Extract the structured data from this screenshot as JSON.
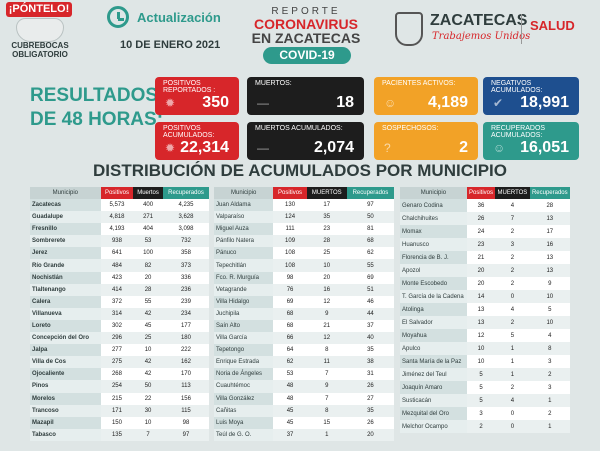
{
  "header": {
    "badge": "¡PÓNTELO!",
    "cubrebocas": "CUBREBOCAS OBLIGATORIO",
    "actualizacion": "Actualización",
    "fecha": "10 DE ENERO 2021",
    "reporte": "REPORTE",
    "coronavirus": "CORONAVIRUS",
    "en_zacatecas": "EN ZACATECAS",
    "covid": "COVID-19",
    "zacatecas": "ZACATECAS",
    "trabajemos": "Trabajemos Unidos",
    "salud": "SALUD"
  },
  "resultados": "RESULTADOS DE 48 HORAS:",
  "cards": [
    {
      "label": "POSITIVOS REPORTADOS :",
      "value": "350",
      "color": "#d7262a"
    },
    {
      "label": "MUERTOS:",
      "value": "18",
      "color": "#1d1d1d"
    },
    {
      "label": "PACIENTES ACTIVOS:",
      "value": "4,189",
      "color": "#f2a227"
    },
    {
      "label": "NEGATIVOS ACUMULADOS:",
      "value": "18,991",
      "color": "#1e4f8f"
    },
    {
      "label": "POSITIVOS ACUMULADOS:",
      "value": "22,314",
      "color": "#d7262a"
    },
    {
      "label": "MUERTOS ACUMULADOS:",
      "value": "2,074",
      "color": "#1d1d1d"
    },
    {
      "label": "SOSPECHOSOS:",
      "value": "2",
      "color": "#f2a227"
    },
    {
      "label": "RECUPERADOS ACUMULADOS:",
      "value": "16,051",
      "color": "#2e9a8c"
    }
  ],
  "distribucion_title": "DISTRIBUCIÓN DE ACUMULADOS POR MUNICIPIO",
  "tables": [
    {
      "headers": [
        "Municipio",
        "Positivos",
        "Muertos",
        "Recuperados"
      ],
      "rows": [
        [
          "Zacatecas",
          "5,573",
          "400",
          "4,235"
        ],
        [
          "Guadalupe",
          "4,818",
          "271",
          "3,628"
        ],
        [
          "Fresnillo",
          "4,193",
          "404",
          "3,098"
        ],
        [
          "Sombrerete",
          "938",
          "53",
          "732"
        ],
        [
          "Jerez",
          "641",
          "100",
          "358"
        ],
        [
          "Río Grande",
          "484",
          "82",
          "373"
        ],
        [
          "Nochistlán",
          "423",
          "20",
          "336"
        ],
        [
          "Tlaltenango",
          "414",
          "28",
          "236"
        ],
        [
          "Calera",
          "372",
          "55",
          "239"
        ],
        [
          "Villanueva",
          "314",
          "42",
          "234"
        ],
        [
          "Loreto",
          "302",
          "45",
          "177"
        ],
        [
          "Concepción del Oro",
          "296",
          "25",
          "180"
        ],
        [
          "Jalpa",
          "277",
          "10",
          "222"
        ],
        [
          "Villa de Cos",
          "275",
          "42",
          "162"
        ],
        [
          "Ojocaliente",
          "268",
          "42",
          "170"
        ],
        [
          "Pinos",
          "254",
          "50",
          "113"
        ],
        [
          "Morelos",
          "215",
          "22",
          "156"
        ],
        [
          "Trancoso",
          "171",
          "30",
          "115"
        ],
        [
          "Mazapil",
          "150",
          "10",
          "98"
        ],
        [
          "Tabasco",
          "135",
          "7",
          "97"
        ]
      ]
    },
    {
      "headers": [
        "Municipio",
        "Positivos",
        "MUERTOS",
        "Recuperados"
      ],
      "rows": [
        [
          "Juan Aldama",
          "130",
          "17",
          "97"
        ],
        [
          "Valparaíso",
          "124",
          "35",
          "50"
        ],
        [
          "Miguel Auza",
          "111",
          "23",
          "81"
        ],
        [
          "Pánfilo Natera",
          "109",
          "28",
          "68"
        ],
        [
          "Pánuco",
          "108",
          "25",
          "62"
        ],
        [
          "Tepechitlán",
          "108",
          "10",
          "55"
        ],
        [
          "Fco. R. Murguía",
          "98",
          "20",
          "69"
        ],
        [
          "Vetagrande",
          "76",
          "16",
          "51"
        ],
        [
          "Villa Hidalgo",
          "69",
          "12",
          "46"
        ],
        [
          "Juchipila",
          "68",
          "9",
          "44"
        ],
        [
          "Saín Alto",
          "68",
          "21",
          "37"
        ],
        [
          "Villa García",
          "66",
          "12",
          "40"
        ],
        [
          "Tepetongo",
          "64",
          "8",
          "35"
        ],
        [
          "Enrique Estrada",
          "62",
          "11",
          "38"
        ],
        [
          "Noria de Ángeles",
          "53",
          "7",
          "31"
        ],
        [
          "Cuauhtémoc",
          "48",
          "9",
          "26"
        ],
        [
          "Villa González",
          "48",
          "7",
          "27"
        ],
        [
          "Cañitas",
          "45",
          "8",
          "35"
        ],
        [
          "Luis Moya",
          "45",
          "15",
          "26"
        ],
        [
          "Teúl de G. O.",
          "37",
          "1",
          "20"
        ]
      ]
    },
    {
      "headers": [
        "Municipio",
        "Positivos",
        "MUERTOS",
        "Recuperados"
      ],
      "rows": [
        [
          "Genaro Codina",
          "36",
          "4",
          "28"
        ],
        [
          "Chalchihuites",
          "26",
          "7",
          "13"
        ],
        [
          "Momax",
          "24",
          "2",
          "17"
        ],
        [
          "Huanusco",
          "23",
          "3",
          "16"
        ],
        [
          "Florencia de B. J.",
          "21",
          "2",
          "13"
        ],
        [
          "Apozol",
          "20",
          "2",
          "13"
        ],
        [
          "Monte Escobedo",
          "20",
          "2",
          "9"
        ],
        [
          "T. García de la Cadena",
          "14",
          "0",
          "10"
        ],
        [
          "Atolinga",
          "13",
          "4",
          "5"
        ],
        [
          "El Salvador",
          "13",
          "2",
          "10"
        ],
        [
          "Moyahua",
          "12",
          "5",
          "4"
        ],
        [
          "Apulco",
          "10",
          "1",
          "8"
        ],
        [
          "Santa María de la Paz",
          "10",
          "1",
          "3"
        ],
        [
          "Jiménez del Teul",
          "5",
          "1",
          "2"
        ],
        [
          "Joaquín Amaro",
          "5",
          "2",
          "3"
        ],
        [
          "Susticacán",
          "5",
          "4",
          "1"
        ],
        [
          "Mezquital del Oro",
          "3",
          "0",
          "2"
        ],
        [
          "Melchor Ocampo",
          "2",
          "0",
          "1"
        ]
      ]
    }
  ]
}
